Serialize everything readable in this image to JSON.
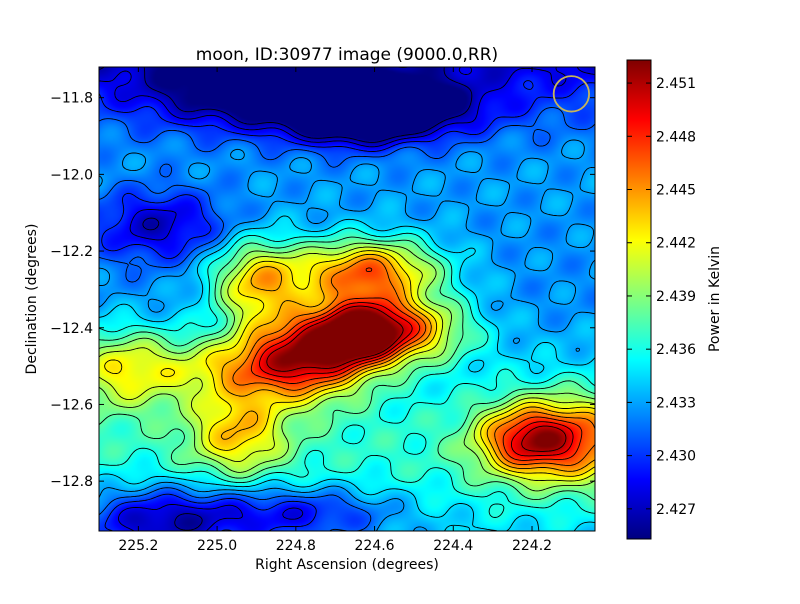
{
  "chart_data": {
    "type": "heatmap",
    "title": "moon, ID:30977 image (9000.0,RR)",
    "xlabel": "Right Ascension (degrees)",
    "ylabel": "Declination (degrees)",
    "colorbar_label": "Power in Kelvin",
    "colormap": "jet",
    "xlim": [
      225.3,
      224.04
    ],
    "ylim": [
      -12.93,
      -11.72
    ],
    "clim": [
      2.4253,
      2.4523
    ],
    "x_ticks": [
      {
        "value": 225.2,
        "label": "225.2"
      },
      {
        "value": 225.0,
        "label": "225.0"
      },
      {
        "value": 224.8,
        "label": "224.8"
      },
      {
        "value": 224.6,
        "label": "224.6"
      },
      {
        "value": 224.4,
        "label": "224.4"
      },
      {
        "value": 224.2,
        "label": "224.2"
      }
    ],
    "y_ticks": [
      {
        "value": -11.8,
        "label": "−11.8"
      },
      {
        "value": -12.0,
        "label": "−12.0"
      },
      {
        "value": -12.2,
        "label": "−12.2"
      },
      {
        "value": -12.4,
        "label": "−12.4"
      },
      {
        "value": -12.6,
        "label": "−12.6"
      },
      {
        "value": -12.8,
        "label": "−12.8"
      }
    ],
    "colorbar_ticks": [
      {
        "value": 2.451,
        "label": "2.451"
      },
      {
        "value": 2.448,
        "label": "2.448"
      },
      {
        "value": 2.445,
        "label": "2.445"
      },
      {
        "value": 2.442,
        "label": "2.442"
      },
      {
        "value": 2.439,
        "label": "2.439"
      },
      {
        "value": 2.436,
        "label": "2.436"
      },
      {
        "value": 2.433,
        "label": "2.433"
      },
      {
        "value": 2.43,
        "label": "2.430"
      },
      {
        "value": 2.427,
        "label": "2.427"
      }
    ],
    "contours": "black contour lines at regular power intervals",
    "field_features": [
      {
        "ra": 224.64,
        "dec": -12.41,
        "value": 2.4515,
        "kind": "peak"
      },
      {
        "ra": 224.78,
        "dec": -12.47,
        "value": 2.449,
        "kind": "peak"
      },
      {
        "ra": 224.62,
        "dec": -12.25,
        "value": 2.448,
        "kind": "peak"
      },
      {
        "ra": 224.9,
        "dec": -12.28,
        "value": 2.445,
        "kind": "peak"
      },
      {
        "ra": 224.5,
        "dec": -12.4,
        "value": 2.444,
        "kind": "peak"
      },
      {
        "ra": 224.1,
        "dec": -12.69,
        "value": 2.4445,
        "kind": "peak"
      },
      {
        "ra": 224.22,
        "dec": -12.69,
        "value": 2.443,
        "kind": "peak"
      },
      {
        "ra": 225.24,
        "dec": -12.5,
        "value": 2.442,
        "kind": "peak"
      },
      {
        "ra": 224.96,
        "dec": -12.5,
        "value": 2.441,
        "kind": "peak"
      },
      {
        "ra": 224.95,
        "dec": -12.67,
        "value": 2.442,
        "kind": "peak"
      },
      {
        "ra": 224.55,
        "dec": -11.82,
        "value": 2.426,
        "kind": "trough"
      },
      {
        "ra": 224.9,
        "dec": -11.78,
        "value": 2.4265,
        "kind": "trough"
      },
      {
        "ra": 224.65,
        "dec": -11.85,
        "value": 2.4262,
        "kind": "trough"
      },
      {
        "ra": 225.15,
        "dec": -12.9,
        "value": 2.427,
        "kind": "trough"
      },
      {
        "ra": 224.8,
        "dec": -12.88,
        "value": 2.4285,
        "kind": "trough"
      },
      {
        "ra": 225.15,
        "dec": -12.13,
        "value": 2.429,
        "kind": "trough"
      }
    ],
    "beam_marker": {
      "ra": 224.1,
      "dec": -11.79,
      "radius_deg": 0.05,
      "color": "#c8b45a"
    },
    "grid": false
  }
}
